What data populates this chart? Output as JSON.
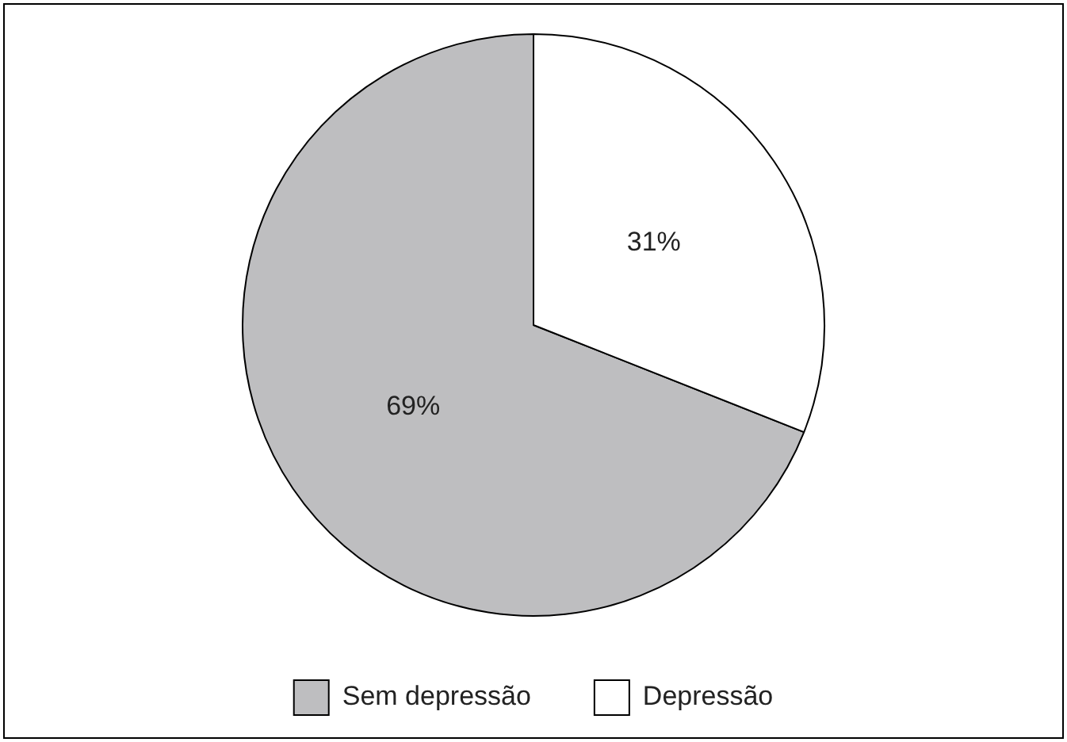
{
  "chart_data": {
    "type": "pie",
    "categories": [
      "Sem depressão",
      "Depressão"
    ],
    "values": [
      69,
      31
    ],
    "colors": [
      "#bebec0",
      "#ffffff"
    ],
    "value_labels": [
      "69%",
      "31%"
    ],
    "legend": "bottom"
  }
}
